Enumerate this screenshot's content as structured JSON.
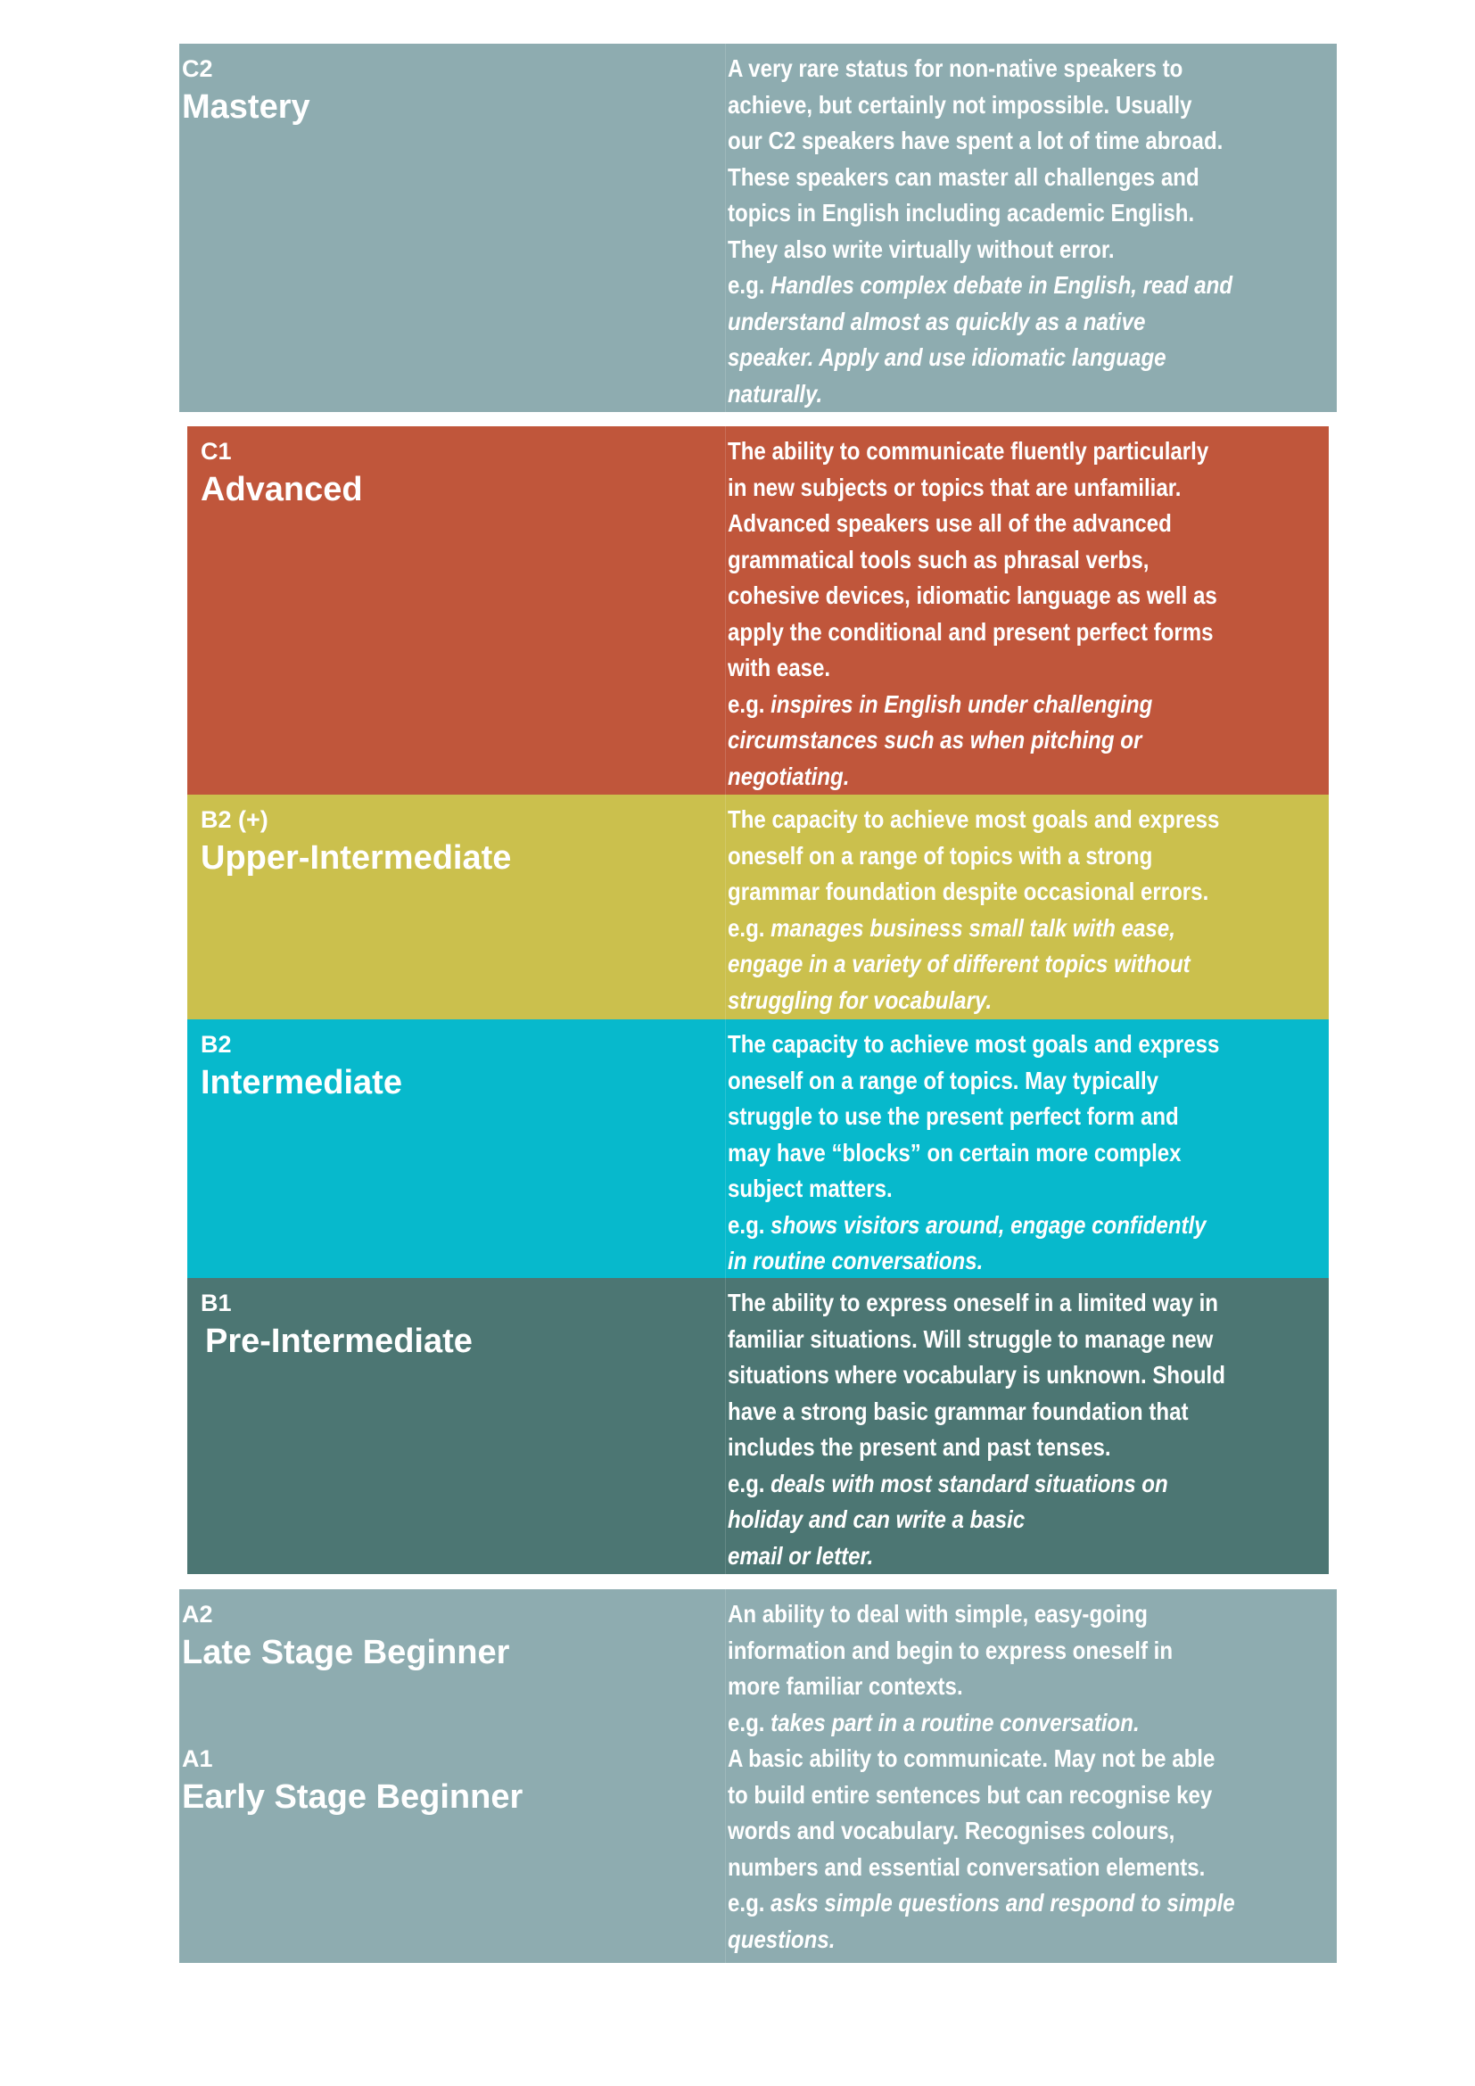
{
  "colors": {
    "c2": "#8eacb0",
    "c1": "#c0563b",
    "b2plus": "#cbc04d",
    "b2": "#07b9cc",
    "b1": "#4c7673",
    "a": "#8eacb0",
    "text": "#ffffff"
  },
  "levels": [
    {
      "code": "C2",
      "title": "Mastery",
      "body_lines": [
        "A very rare status for non-native speakers to",
        "achieve, but certainly not impossible. Usually",
        "our C2 speakers have spent a lot of time abroad.",
        "These speakers can master all challenges and",
        "topics in English including academic English.",
        "They also write virtually without error."
      ],
      "example_prefix": "e.g.",
      "example_lines": [
        "Handles complex debate in English, read and",
        "understand almost as quickly as a native",
        "speaker. Apply and use idiomatic language",
        "naturally."
      ]
    },
    {
      "code": "C1",
      "title": "Advanced",
      "body_lines": [
        "The ability to communicate fluently particularly",
        "in new subjects or topics that are unfamiliar.",
        "Advanced speakers use all of the advanced",
        "grammatical tools such as phrasal verbs,",
        "cohesive devices, idiomatic language as well as",
        "apply the conditional and present perfect forms",
        "with ease."
      ],
      "example_prefix": "e.g.",
      "example_lines": [
        "inspires in English under challenging",
        "circumstances such as when pitching or",
        "negotiating."
      ]
    },
    {
      "code": "B2 (+)",
      "title": "Upper-Intermediate",
      "body_lines": [
        "The capacity to achieve most goals and express",
        "oneself on a range of topics with a strong",
        "grammar foundation despite occasional errors."
      ],
      "example_prefix": "e.g.",
      "example_lines": [
        "manages business small talk with ease,",
        "engage in a variety of different topics without",
        "struggling for vocabulary."
      ]
    },
    {
      "code": "B2",
      "title": "Intermediate",
      "body_lines": [
        "The capacity to achieve most goals and express",
        "oneself on a range of topics. May typically",
        "struggle to use the present perfect form and",
        "may have “blocks” on certain more complex",
        "subject matters."
      ],
      "example_prefix": "e.g. ",
      "example_lines": [
        "shows visitors around, engage confidently",
        "in routine conversations."
      ]
    },
    {
      "code": "B1",
      "title": "Pre-Intermediate",
      "body_lines": [
        "The ability to express oneself in a limited way in",
        "familiar situations. Will struggle to manage new",
        "situations where vocabulary is unknown. Should",
        "have a strong basic grammar foundation that",
        "includes the present and past tenses."
      ],
      "example_prefix": "e.g.",
      "example_lines": [
        "deals with most standard situations on",
        "holiday and can write a basic",
        "email or letter."
      ]
    },
    {
      "code": "A2",
      "title": "Late Stage Beginner",
      "body_lines": [
        "An ability to deal with simple, easy-going",
        "information and begin to express oneself in",
        "more familiar contexts."
      ],
      "example_prefix": "e.g.",
      "example_lines": [
        "takes part in a routine conversation."
      ]
    },
    {
      "code": "A1",
      "title": "Early Stage Beginner",
      "body_lines": [
        "A basic ability to communicate. May not be able",
        "to build entire sentences but can recognise key",
        "words and vocabulary. Recognises colours,",
        "numbers and essential conversation elements."
      ],
      "example_prefix": "e.g.",
      "example_lines": [
        "asks simple questions and respond to simple",
        "questions."
      ]
    }
  ]
}
